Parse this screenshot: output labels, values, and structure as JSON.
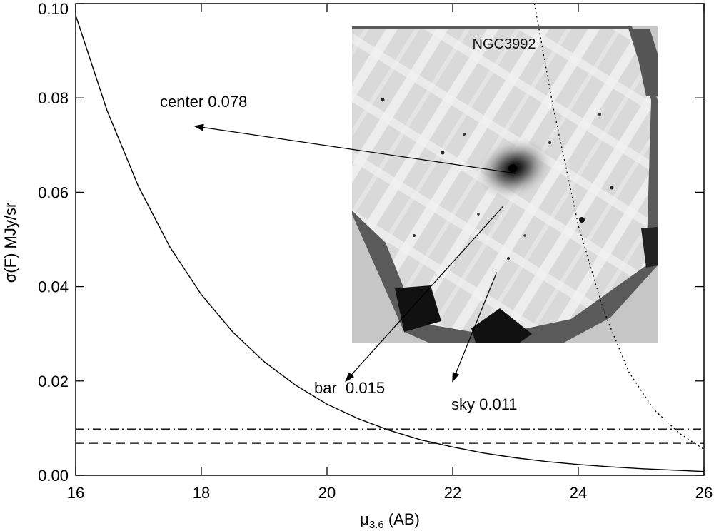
{
  "chart_data": {
    "type": "line",
    "xlabel": "μ",
    "xlabel_sub": "3.6",
    "xlabel_suffix": " (AB)",
    "ylabel": "σ(F)  MJy/sr",
    "xlim": [
      16,
      26
    ],
    "ylim": [
      0.0,
      0.1
    ],
    "xticks": [
      "16",
      "18",
      "20",
      "22",
      "24",
      "26"
    ],
    "yticks": [
      "0.00",
      "0.02",
      "0.04",
      "0.06",
      "0.08",
      "0.10"
    ],
    "grid": false,
    "series": [
      {
        "style": "solid",
        "x": [
          16,
          16.5,
          17,
          17.5,
          18,
          18.5,
          19,
          19.5,
          20,
          20.5,
          21,
          21.5,
          22,
          22.5,
          23,
          23.5,
          24,
          24.5,
          25,
          25.5,
          26
        ],
        "y": [
          0.0975,
          0.0773,
          0.0612,
          0.0484,
          0.0383,
          0.0304,
          0.0241,
          0.0191,
          0.0151,
          0.012,
          0.0095,
          0.0075,
          0.006,
          0.0047,
          0.0037,
          0.0029,
          0.0023,
          0.0018,
          0.0014,
          0.0011,
          0.0008
        ]
      },
      {
        "style": "dotted",
        "x": [
          23.3,
          23.6,
          24.0,
          24.4,
          24.8,
          25.2,
          25.6,
          26.0
        ],
        "y": [
          0.1,
          0.078,
          0.053,
          0.035,
          0.022,
          0.014,
          0.009,
          0.0055
        ]
      },
      {
        "style": "dash-dot",
        "x": [
          16,
          26
        ],
        "y": [
          0.0098,
          0.0098
        ]
      },
      {
        "style": "dashed",
        "x": [
          16,
          26
        ],
        "y": [
          0.0068,
          0.0068
        ]
      }
    ],
    "annotations": [
      {
        "text": "center 0.078",
        "arrow_to": [
          17.9,
          0.074
        ],
        "arrow_from": [
          23.0,
          0.064
        ]
      },
      {
        "text": "bar  0.015",
        "arrow_to": [
          20.3,
          0.02
        ],
        "arrow_from": [
          22.8,
          0.057
        ]
      },
      {
        "text": "sky 0.011",
        "arrow_to": [
          22.0,
          0.02
        ],
        "arrow_from": [
          22.7,
          0.043
        ]
      }
    ],
    "inset": {
      "title": "NGC3992",
      "image": "galaxy-mosaic"
    }
  }
}
